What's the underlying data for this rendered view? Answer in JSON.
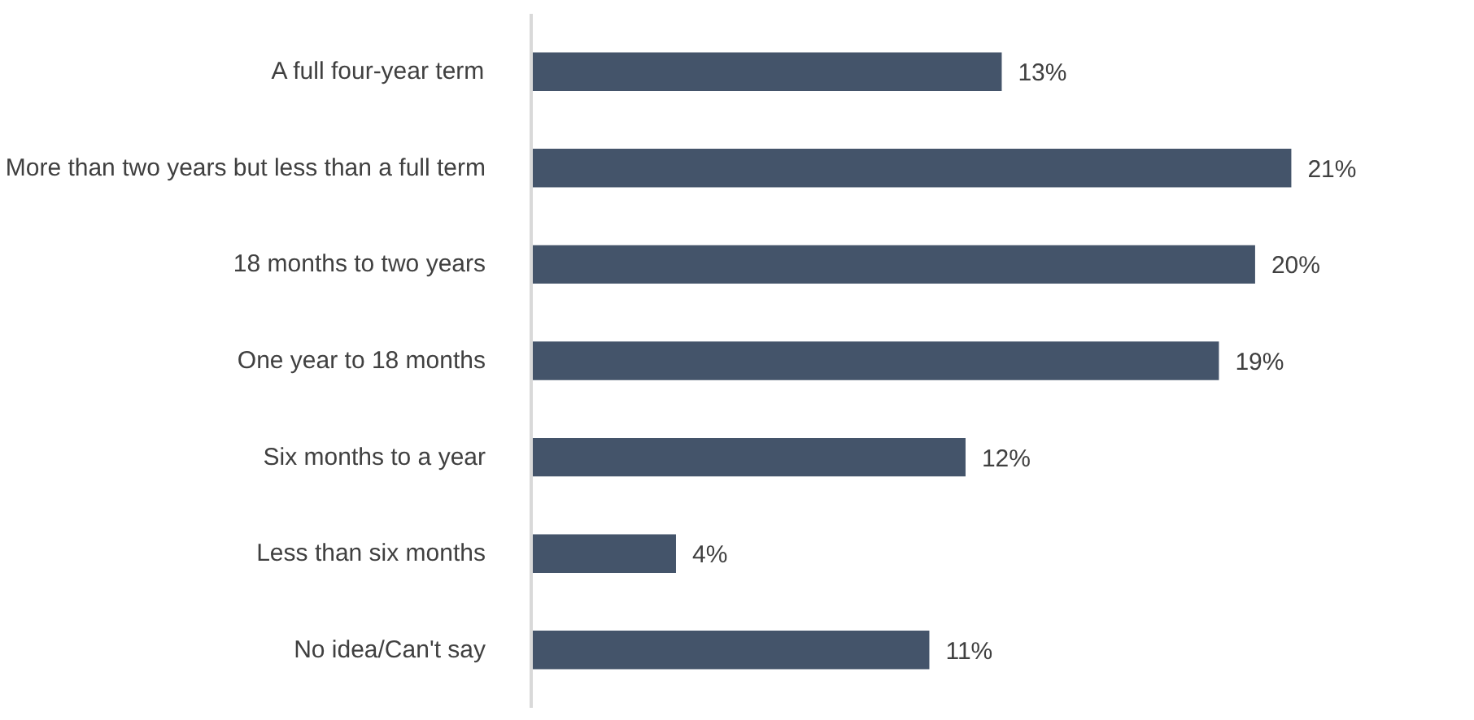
{
  "chart_data": {
    "type": "bar",
    "orientation": "horizontal",
    "categories": [
      "A full four-year term",
      "More than two years but less than a full term",
      "18 months to two years",
      "One year to 18 months",
      "Six months to a year",
      "Less than six months",
      "No idea/Can't say"
    ],
    "values": [
      13,
      21,
      20,
      19,
      12,
      4,
      11
    ],
    "value_labels": [
      "13%",
      "21%",
      "20%",
      "19%",
      "12%",
      "4%",
      "11%"
    ],
    "color": "#44546a"
  }
}
